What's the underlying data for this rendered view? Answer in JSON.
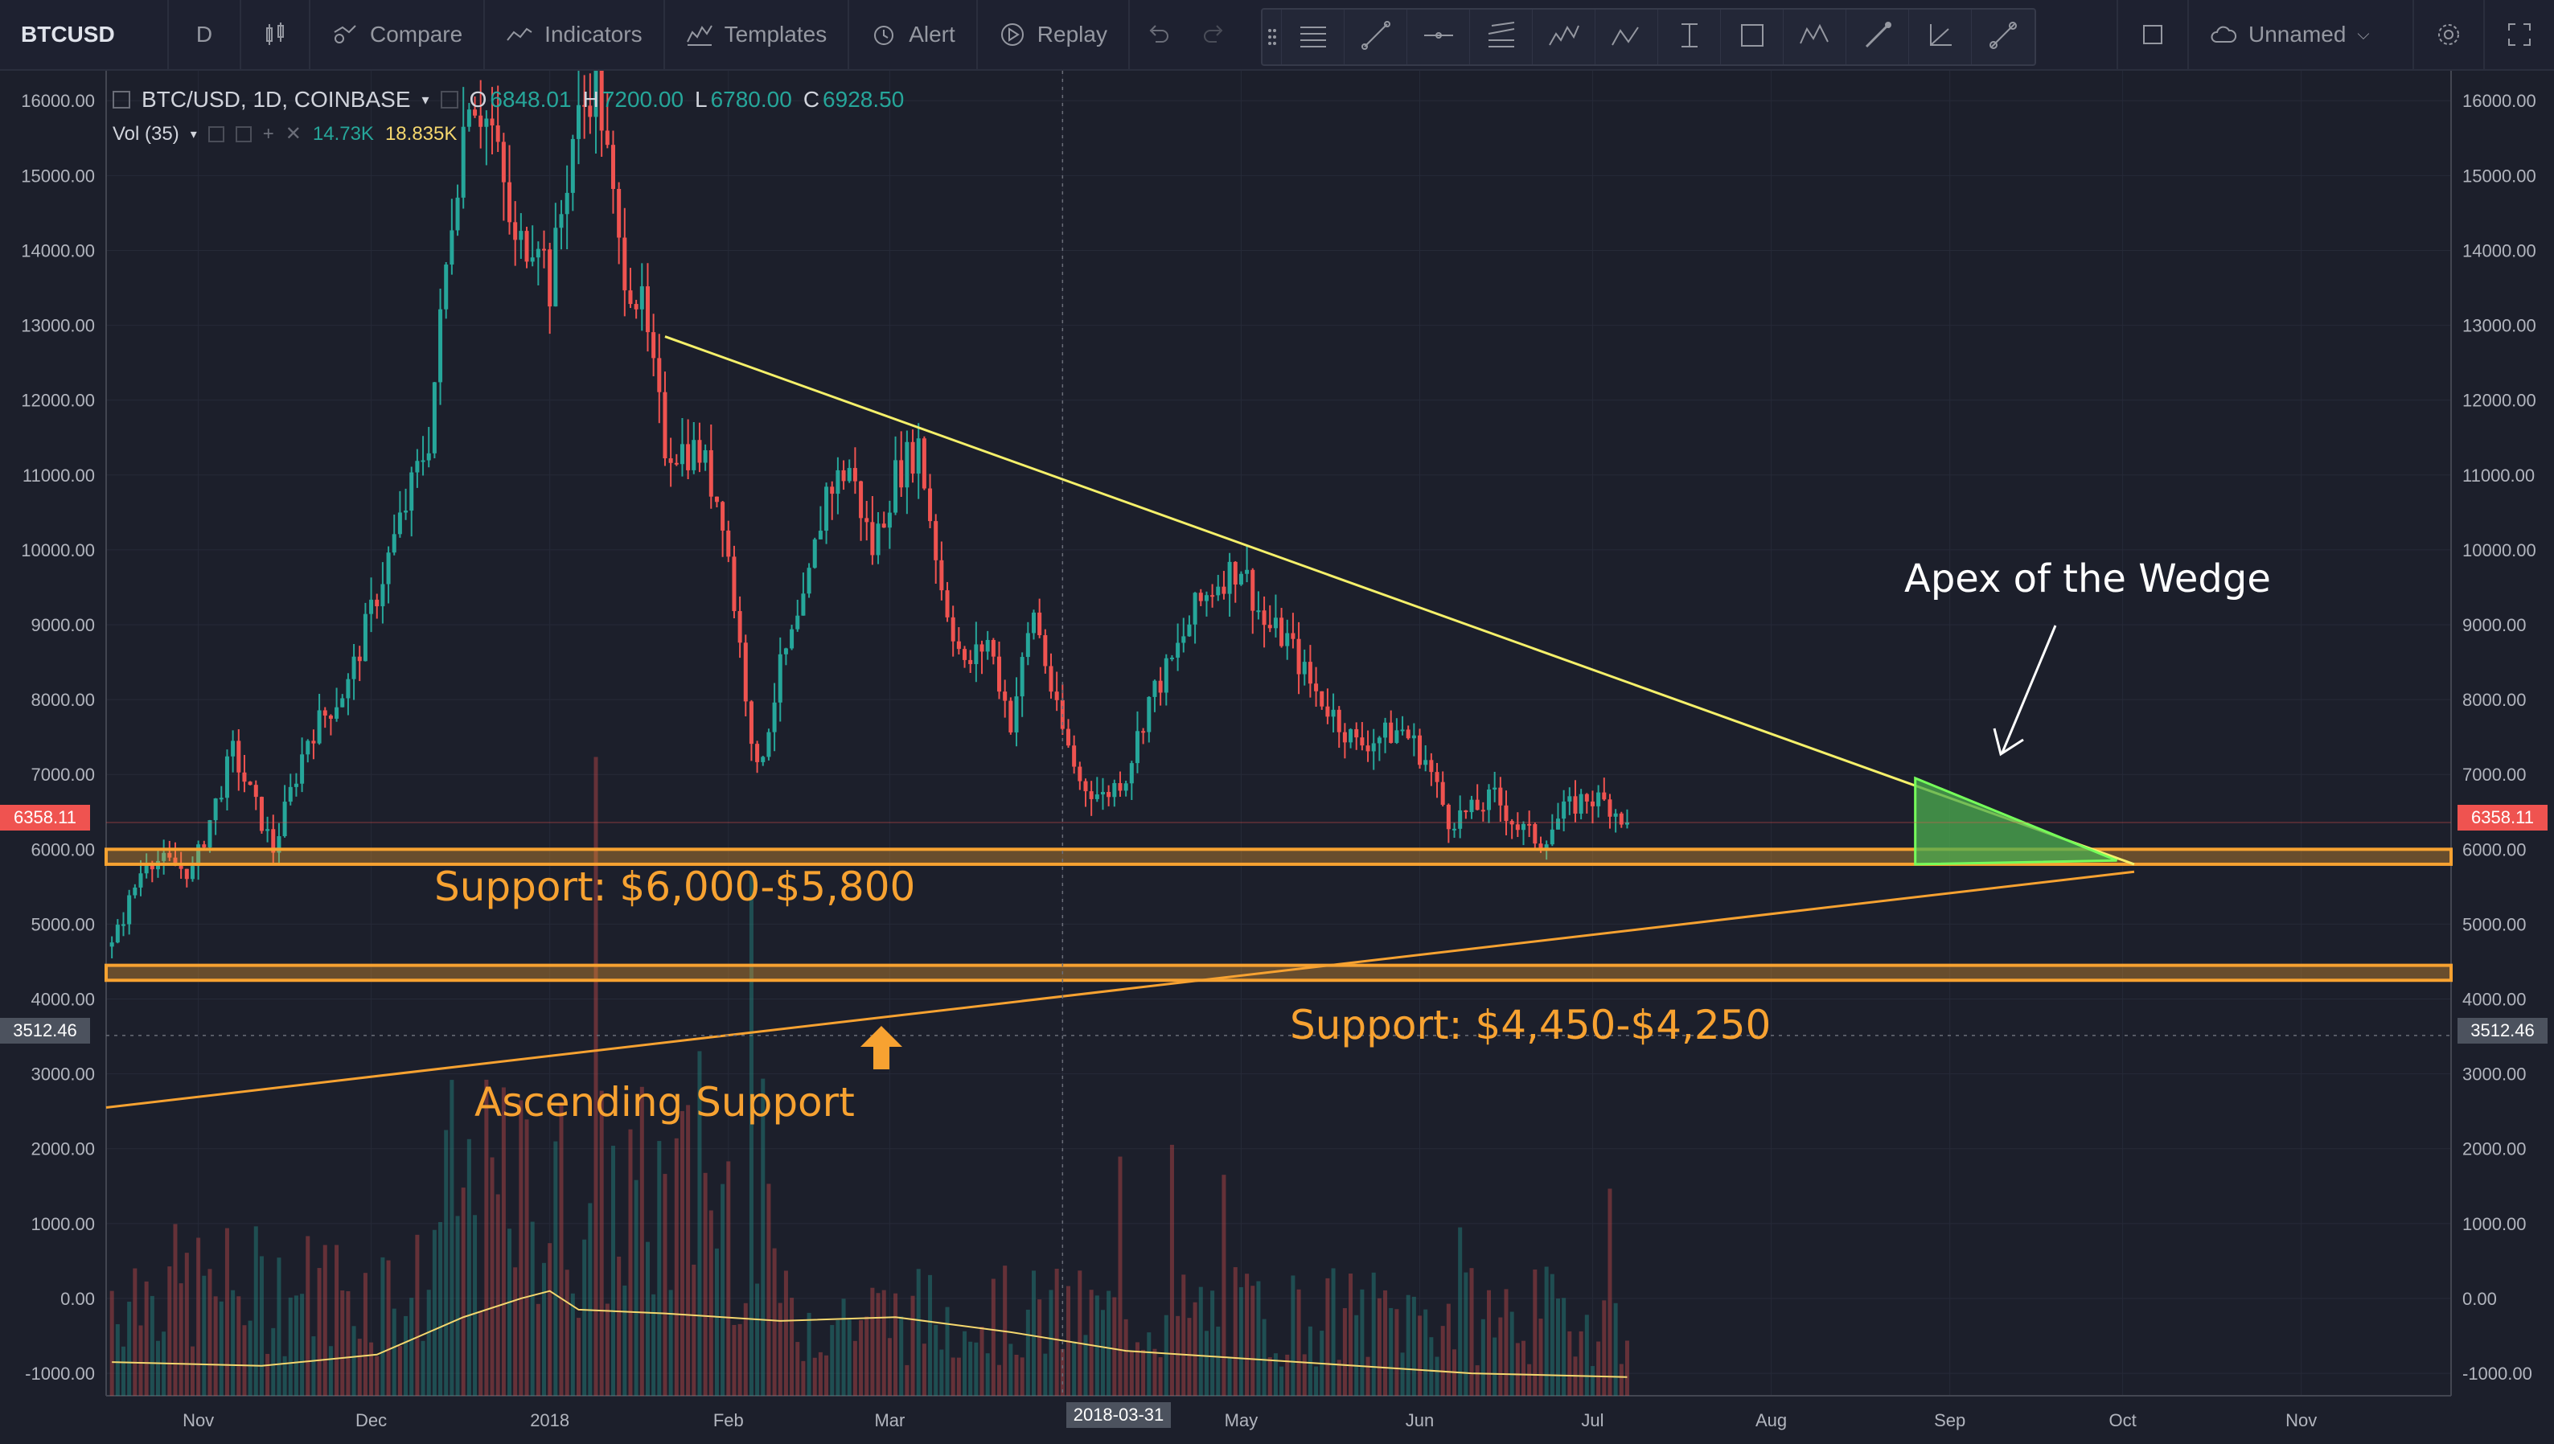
{
  "toolbar": {
    "symbol": "BTCUSD",
    "interval": "D",
    "compare": "Compare",
    "indicators": "Indicators",
    "templates": "Templates",
    "alert": "Alert",
    "replay": "Replay",
    "layout_name": "Unnamed"
  },
  "legend": {
    "title": "BTC/USD, 1D, COINBASE",
    "o_label": "O",
    "o_value": "6848.01",
    "h_label": "H",
    "h_value": "7200.00",
    "l_label": "L",
    "l_value": "6780.00",
    "c_label": "C",
    "c_value": "6928.50",
    "vol_title": "Vol (35)",
    "vol_value": "14.73K",
    "vol_ma_value": "18.835K"
  },
  "annotations": {
    "apex": "Apex of the Wedge",
    "support_upper": "Support: $6,000-$5,800",
    "support_lower": "Support: $4,450-$4,250",
    "ascending": "Ascending Support"
  },
  "price_tags": {
    "last_price": "6358.11",
    "crosshair_price": "3512.46",
    "crosshair_date": "2018-03-31"
  },
  "colors": {
    "background": "#1c1f2b",
    "up": "#26a69a",
    "down": "#ef5350",
    "resistance": "#f5f06a",
    "support_band": "#f7a231",
    "apex_fill": "#4caf50"
  },
  "chart_data": {
    "type": "candlestick",
    "symbol": "BTC/USD",
    "interval": "1D",
    "exchange": "COINBASE",
    "ylim": [
      -1300,
      16400
    ],
    "y_ticks": [
      16000,
      15000,
      14000,
      13000,
      12000,
      11000,
      10000,
      9000,
      8000,
      7000,
      6000,
      5000,
      4000,
      3000,
      2000,
      1000,
      0,
      -1000
    ],
    "y_tick_labels": [
      "16000.00",
      "15000.00",
      "14000.00",
      "13000.00",
      "12000.00",
      "11000.00",
      "10000.00",
      "9000.00",
      "8000.00",
      "7000.00",
      "6000.00",
      "5000.00",
      "4000.00",
      "3000.00",
      "2000.00",
      "1000.00",
      "0.00",
      "-1000.00"
    ],
    "x_tick_labels": [
      "Nov",
      "Dec",
      "2018",
      "Feb",
      "Mar",
      "2018-03-31",
      "May",
      "Jun",
      "Jul",
      "Aug",
      "Sep",
      "Oct",
      "Nov"
    ],
    "x_tick_days": [
      -61,
      -31,
      0,
      31,
      59,
      89,
      120,
      151,
      181,
      212,
      243,
      273,
      304
    ],
    "x_range_days": [
      -77,
      330
    ],
    "price_path": [
      [
        -76,
        4700
      ],
      [
        -70,
        5900
      ],
      [
        -62,
        5700
      ],
      [
        -55,
        7300
      ],
      [
        -48,
        6000
      ],
      [
        -42,
        7500
      ],
      [
        -35,
        8200
      ],
      [
        -28,
        9900
      ],
      [
        -21,
        11500
      ],
      [
        -17,
        14500
      ],
      [
        -14,
        16200
      ],
      [
        -10,
        15600
      ],
      [
        -6,
        14000
      ],
      [
        -2,
        14300
      ],
      [
        0,
        13500
      ],
      [
        4,
        15500
      ],
      [
        8,
        16400
      ],
      [
        12,
        14000
      ],
      [
        16,
        13200
      ],
      [
        20,
        11400
      ],
      [
        26,
        11300
      ],
      [
        30,
        10500
      ],
      [
        33,
        8700
      ],
      [
        36,
        7000
      ],
      [
        40,
        8400
      ],
      [
        44,
        9200
      ],
      [
        48,
        10800
      ],
      [
        52,
        11100
      ],
      [
        56,
        10000
      ],
      [
        60,
        11000
      ],
      [
        64,
        11400
      ],
      [
        68,
        9500
      ],
      [
        72,
        8400
      ],
      [
        76,
        8800
      ],
      [
        80,
        7700
      ],
      [
        84,
        9200
      ],
      [
        88,
        7800
      ],
      [
        92,
        6900
      ],
      [
        96,
        6700
      ],
      [
        100,
        7000
      ],
      [
        104,
        8000
      ],
      [
        108,
        8500
      ],
      [
        112,
        9200
      ],
      [
        116,
        9600
      ],
      [
        120,
        9800
      ],
      [
        124,
        9000
      ],
      [
        128,
        8800
      ],
      [
        132,
        8200
      ],
      [
        136,
        7800
      ],
      [
        140,
        7400
      ],
      [
        144,
        7500
      ],
      [
        148,
        7600
      ],
      [
        152,
        7200
      ],
      [
        156,
        6400
      ],
      [
        160,
        6500
      ],
      [
        164,
        6700
      ],
      [
        168,
        6300
      ],
      [
        172,
        6100
      ],
      [
        176,
        6500
      ],
      [
        180,
        6700
      ],
      [
        184,
        6600
      ],
      [
        187,
        6358
      ]
    ],
    "last_close": 6358.11,
    "volume_ma_path": [
      [
        -76,
        -850
      ],
      [
        -50,
        -900
      ],
      [
        -30,
        -750
      ],
      [
        -15,
        -250
      ],
      [
        -5,
        0
      ],
      [
        0,
        100
      ],
      [
        5,
        -150
      ],
      [
        20,
        -200
      ],
      [
        40,
        -300
      ],
      [
        60,
        -250
      ],
      [
        80,
        -450
      ],
      [
        100,
        -700
      ],
      [
        120,
        -800
      ],
      [
        140,
        -900
      ],
      [
        160,
        -1000
      ],
      [
        187,
        -1050
      ]
    ],
    "drawings": {
      "resistance_line": [
        [
          20,
          12850
        ],
        [
          275,
          5800
        ]
      ],
      "ascending_support_line": [
        [
          -77,
          2550
        ],
        [
          275,
          5700
        ]
      ],
      "support_band_upper": [
        5800,
        6000
      ],
      "support_band_lower": [
        4250,
        4450
      ],
      "apex_triangle": [
        [
          237,
          5800
        ],
        [
          237,
          6950
        ],
        [
          272,
          5850
        ]
      ]
    }
  }
}
